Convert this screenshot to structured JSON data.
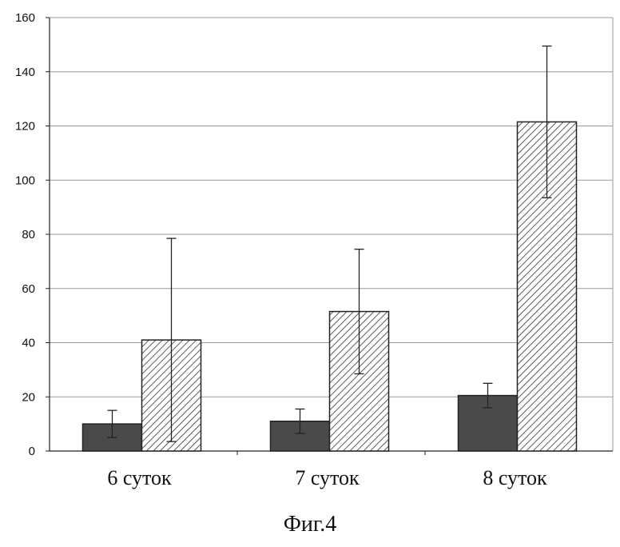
{
  "chart_data": {
    "type": "bar",
    "categories": [
      "6 суток",
      "7 суток",
      "8 суток"
    ],
    "series": [
      {
        "values": [
          10,
          11,
          20.5
        ],
        "error": [
          5,
          4.5,
          4.5
        ],
        "pattern": "solid-dark"
      },
      {
        "values": [
          41,
          51.5,
          121.5
        ],
        "error": [
          37.5,
          23,
          28
        ],
        "pattern": "hatched"
      }
    ],
    "ylim": [
      0,
      160
    ],
    "yticks": [
      0,
      20,
      40,
      60,
      80,
      100,
      120,
      140,
      160
    ],
    "grid": true,
    "legend": "none",
    "colors": {
      "dark": "#4a4a4a",
      "hatch": "#333333",
      "grid": "#9a9a9a",
      "axis": "#222222"
    }
  },
  "caption": "Фиг.4"
}
